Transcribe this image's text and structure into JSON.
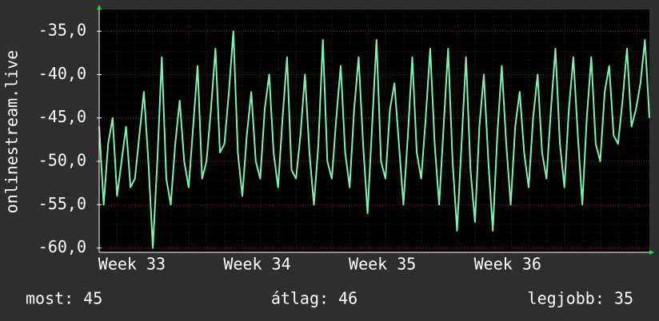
{
  "chart_data": {
    "type": "line",
    "ylabel": "onlinestream.live",
    "ylim": [
      -60.5,
      -32.5
    ],
    "yticks": [
      {
        "value": -35,
        "label": "-35,0"
      },
      {
        "value": -40,
        "label": "-40,0"
      },
      {
        "value": -45,
        "label": "-45,0"
      },
      {
        "value": -50,
        "label": "-50,0"
      },
      {
        "value": -55,
        "label": "-55,0"
      },
      {
        "value": -60,
        "label": "-60,0"
      }
    ],
    "xlim": [
      0,
      30.75
    ],
    "xticks": [
      {
        "value": 1.83,
        "label": "Week 33"
      },
      {
        "value": 8.83,
        "label": "Week 34"
      },
      {
        "value": 15.83,
        "label": "Week 35"
      },
      {
        "value": 22.83,
        "label": "Week 36"
      }
    ],
    "grid": true,
    "series": [
      {
        "color": "#7ff0b4",
        "x": [
          0,
          0.25,
          0.5,
          0.75,
          1,
          1.25,
          1.5,
          1.75,
          2,
          2.25,
          2.5,
          2.75,
          3,
          3.25,
          3.5,
          3.75,
          4,
          4.25,
          4.5,
          4.75,
          5,
          5.25,
          5.5,
          5.75,
          6,
          6.25,
          6.5,
          6.75,
          7,
          7.25,
          7.5,
          7.75,
          8,
          8.25,
          8.5,
          8.75,
          9,
          9.25,
          9.5,
          9.75,
          10,
          10.25,
          10.5,
          10.75,
          11,
          11.25,
          11.5,
          11.75,
          12,
          12.25,
          12.5,
          12.75,
          13,
          13.25,
          13.5,
          13.75,
          14,
          14.25,
          14.5,
          14.75,
          15,
          15.25,
          15.5,
          15.75,
          16,
          16.25,
          16.5,
          16.75,
          17,
          17.25,
          17.5,
          17.75,
          18,
          18.25,
          18.5,
          18.75,
          19,
          19.25,
          19.5,
          19.75,
          20,
          20.25,
          20.5,
          20.75,
          21,
          21.25,
          21.5,
          21.75,
          22,
          22.25,
          22.5,
          22.75,
          23,
          23.25,
          23.5,
          23.75,
          24,
          24.25,
          24.5,
          24.75,
          25,
          25.25,
          25.5,
          25.75,
          26,
          26.25,
          26.5,
          26.75,
          27,
          27.25,
          27.5,
          27.75,
          28,
          28.25,
          28.5,
          28.75,
          29,
          29.25,
          29.5,
          29.75,
          30,
          30.25,
          30.5,
          30.75
        ],
        "values": [
          -46,
          -55,
          -48,
          -45,
          -54,
          -50,
          -46,
          -53,
          -52,
          -47,
          -42,
          -50,
          -60,
          -50,
          -38,
          -52,
          -55,
          -48,
          -43,
          -50,
          -53,
          -46,
          -39,
          -52,
          -50,
          -44,
          -37,
          -49,
          -48,
          -42,
          -35,
          -49,
          -54,
          -47,
          -42,
          -50,
          -52,
          -44,
          -40,
          -49,
          -53,
          -45,
          -38,
          -51,
          -52,
          -47,
          -40,
          -49,
          -55,
          -48,
          -36,
          -50,
          -52,
          -45,
          -39,
          -49,
          -53,
          -44,
          -38,
          -48,
          -56,
          -46,
          -36,
          -50,
          -52,
          -44,
          -41,
          -48,
          -55,
          -47,
          -38,
          -49,
          -52,
          -45,
          -37,
          -48,
          -55,
          -46,
          -37,
          -50,
          -58,
          -48,
          -38,
          -51,
          -57,
          -46,
          -40,
          -50,
          -58,
          -47,
          -39,
          -48,
          -55,
          -46,
          -42,
          -49,
          -53,
          -45,
          -40,
          -49,
          -52,
          -44,
          -37,
          -48,
          -53,
          -44,
          -38,
          -47,
          -55,
          -45,
          -38,
          -48,
          -50,
          -42,
          -39,
          -47,
          -48,
          -43,
          -37,
          -46,
          -44,
          -41,
          -36,
          -45
        ]
      }
    ],
    "footer": {
      "current": "most: 45",
      "average": "átlag: 46",
      "best": "legjobb: 35"
    }
  }
}
